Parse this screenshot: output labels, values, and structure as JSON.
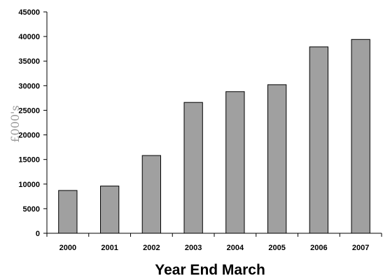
{
  "chart_data": {
    "type": "bar",
    "title": "",
    "xlabel": "Year End March",
    "ylabel": "£000's",
    "categories": [
      "2000",
      "2001",
      "2002",
      "2003",
      "2004",
      "2005",
      "2006",
      "2007"
    ],
    "values": [
      8700,
      9600,
      15800,
      26600,
      28800,
      30200,
      37900,
      39400
    ],
    "ylim": [
      0,
      45000
    ],
    "yticks": [
      "0",
      "5000",
      "10000",
      "15000",
      "20000",
      "25000",
      "30000",
      "35000",
      "40000",
      "45000"
    ],
    "grid": false,
    "legend": "none",
    "colors": {
      "bar_fill": "#a0a0a0",
      "bar_stroke": "#000000",
      "axis": "#000000",
      "ylabel": "#9a9a9a"
    }
  }
}
